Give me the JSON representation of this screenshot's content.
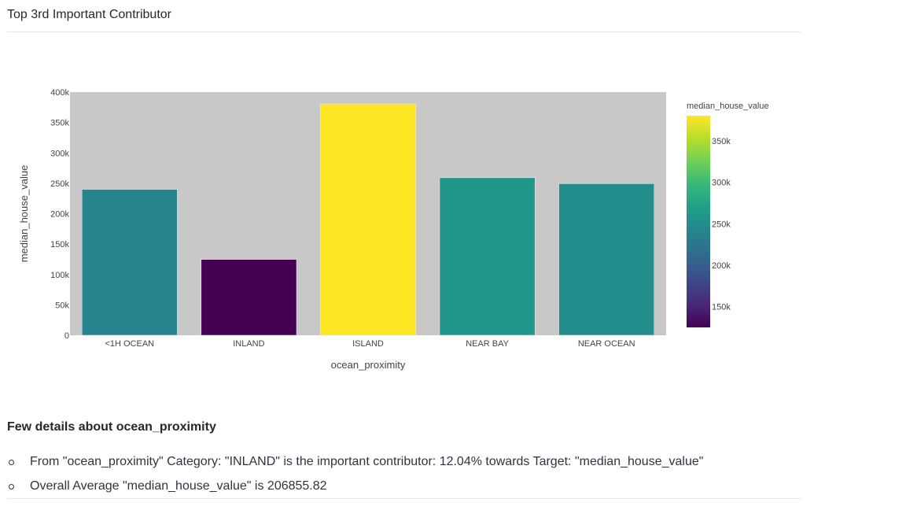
{
  "section": {
    "title": "Top 3rd Important Contributor"
  },
  "chart_data": {
    "type": "bar",
    "title": "",
    "xlabel": "ocean_proximity",
    "ylabel": "median_house_value",
    "categories": [
      "<1H OCEAN",
      "INLAND",
      "ISLAND",
      "NEAR BAY",
      "NEAR OCEAN"
    ],
    "values": [
      240084,
      124805,
      380440,
      259212,
      249434
    ],
    "ylim": [
      0,
      400000
    ],
    "yticks": [
      0,
      50000,
      100000,
      150000,
      200000,
      250000,
      300000,
      350000,
      400000
    ],
    "ytick_labels": [
      "0",
      "50k",
      "100k",
      "150k",
      "200k",
      "250k",
      "300k",
      "350k",
      "400k"
    ],
    "colorscale": "viridis",
    "colorbar": {
      "title": "median_house_value",
      "range": [
        124805,
        380440
      ],
      "ticks": [
        150000,
        200000,
        250000,
        300000,
        350000
      ],
      "tick_labels": [
        "150k",
        "200k",
        "250k",
        "300k",
        "350k"
      ],
      "placement": "right"
    },
    "plot_background": "#c8c8c8",
    "grid": false
  },
  "details": {
    "heading": "Few details about ocean_proximity",
    "items": [
      "From \"ocean_proximity\" Category: \"INLAND\" is the important contributor: 12.04% towards Target: \"median_house_value\"",
      "Overall Average \"median_house_value\" is 206855.82"
    ]
  }
}
